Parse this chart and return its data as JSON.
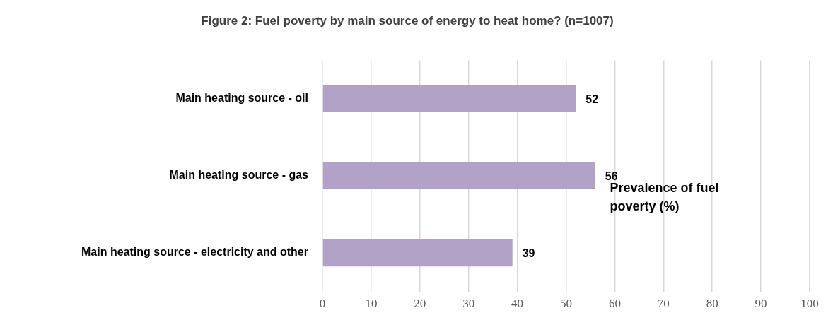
{
  "chart_data": {
    "type": "bar",
    "orientation": "horizontal",
    "title": "Figure 2: Fuel poverty by main source of energy to heat home? (n=1007)",
    "categories": [
      "Main heating source - oil",
      "Main heating source - gas",
      "Main heating source - electricity and other"
    ],
    "values": [
      52,
      56,
      39
    ],
    "color": "#b3a2c7",
    "xlim": [
      0,
      100
    ],
    "xticks": [
      0,
      10,
      20,
      30,
      40,
      50,
      60,
      70,
      80,
      90,
      100
    ],
    "grid": "x",
    "data_labels": true,
    "annotations": [
      "Prevalence of fuel poverty (%)"
    ]
  }
}
